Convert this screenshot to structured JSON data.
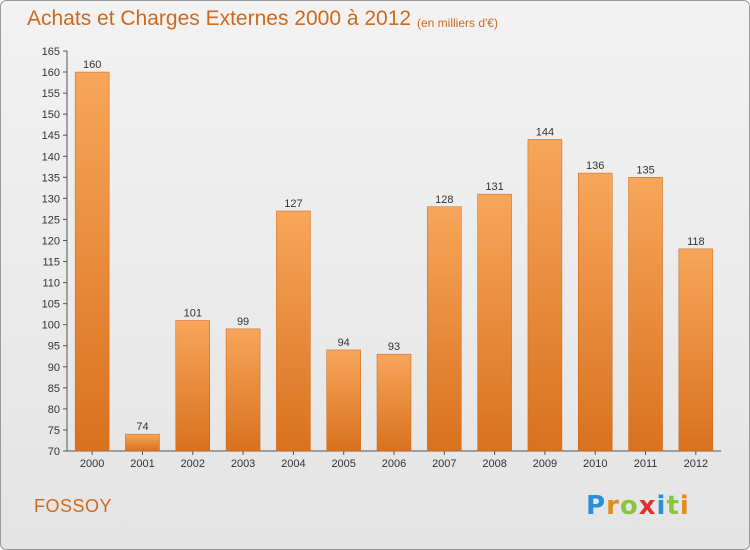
{
  "title": "Achats et Charges Externes 2000 à 2012",
  "subtitle": "(en milliers d'€)",
  "commune": "FOSSOY",
  "logo": {
    "text": "Proxiti",
    "letters": [
      "P",
      "r",
      "o",
      "x",
      "i",
      "t",
      "i"
    ],
    "colors": [
      "#2a8fd6",
      "#e38b1c",
      "#8bc43f",
      "#e0312f",
      "#2a8fd6",
      "#8bc43f",
      "#e38b1c"
    ]
  },
  "colors": {
    "bar_light": "#f7a65a",
    "bar_dark": "#d9711e",
    "accent": "#d0691c"
  },
  "chart_data": {
    "type": "bar",
    "categories": [
      "2000",
      "2001",
      "2002",
      "2003",
      "2004",
      "2005",
      "2006",
      "2007",
      "2008",
      "2009",
      "2010",
      "2011",
      "2012"
    ],
    "values": [
      160,
      74,
      101,
      99,
      127,
      94,
      93,
      128,
      131,
      144,
      136,
      135,
      118
    ],
    "ylim": [
      70,
      165
    ],
    "yticks": [
      70,
      75,
      80,
      85,
      90,
      95,
      100,
      105,
      110,
      115,
      120,
      125,
      130,
      135,
      140,
      145,
      150,
      155,
      160,
      165
    ],
    "grid": false,
    "legend": "none"
  }
}
